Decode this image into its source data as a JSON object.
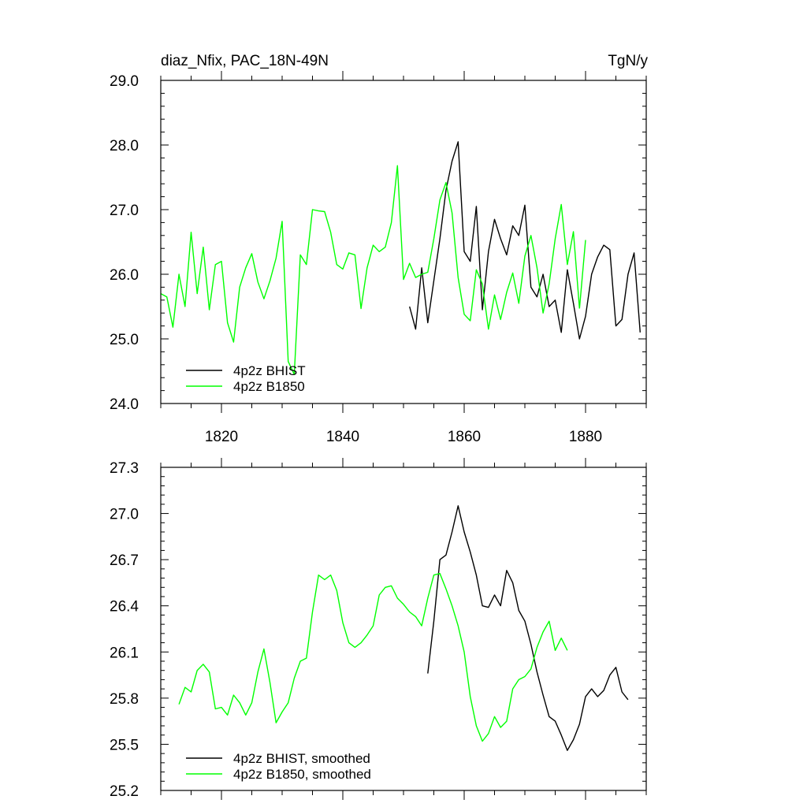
{
  "colors": {
    "bhist": "#000000",
    "b1850": "#00ff00"
  },
  "chart_data": [
    {
      "type": "line",
      "title_left": "diaz_Nfix, PAC_18N-49N",
      "title_right": "TgN/y",
      "xlabel": "",
      "ylabel": "",
      "xlim": [
        1810,
        1890
      ],
      "ylim": [
        24.0,
        29.0
      ],
      "xticks": [
        1820,
        1840,
        1860,
        1880
      ],
      "xtick_labels": [
        "1820",
        "1840",
        "1860",
        "1880"
      ],
      "yticks": [
        24.0,
        25.0,
        26.0,
        27.0,
        28.0,
        29.0
      ],
      "ytick_labels": [
        "24.0",
        "25.0",
        "26.0",
        "27.0",
        "28.0",
        "29.0"
      ],
      "legend_position": "bottom-left",
      "series": [
        {
          "name": "4p2z BHIST",
          "color_key": "bhist",
          "x": [
            1851,
            1852,
            1853,
            1854,
            1855,
            1856,
            1857,
            1858,
            1859,
            1860,
            1861,
            1862,
            1863,
            1864,
            1865,
            1866,
            1867,
            1868,
            1869,
            1870,
            1871,
            1872,
            1873,
            1874,
            1875,
            1876,
            1877,
            1878,
            1879,
            1880,
            1881,
            1882,
            1883,
            1884,
            1885,
            1886,
            1887,
            1888,
            1889
          ],
          "values": [
            25.5,
            25.15,
            26.1,
            25.25,
            25.9,
            26.55,
            27.3,
            27.75,
            28.05,
            26.35,
            26.2,
            27.05,
            25.45,
            26.35,
            26.85,
            26.55,
            26.3,
            26.75,
            26.6,
            27.07,
            25.8,
            25.65,
            26.0,
            25.5,
            25.6,
            25.1,
            26.07,
            25.55,
            25.0,
            25.35,
            26.0,
            26.27,
            26.45,
            26.38,
            25.2,
            25.3,
            26.0,
            26.33,
            25.1
          ]
        },
        {
          "name": "4p2z B1850",
          "color_key": "b1850",
          "x": [
            1810,
            1811,
            1812,
            1813,
            1814,
            1815,
            1816,
            1817,
            1818,
            1819,
            1820,
            1821,
            1822,
            1823,
            1824,
            1825,
            1826,
            1827,
            1828,
            1829,
            1830,
            1831,
            1832,
            1833,
            1834,
            1835,
            1836,
            1837,
            1838,
            1839,
            1840,
            1841,
            1842,
            1843,
            1844,
            1845,
            1846,
            1847,
            1848,
            1849,
            1850,
            1851,
            1852,
            1853,
            1854,
            1855,
            1856,
            1857,
            1858,
            1859,
            1860,
            1861,
            1862,
            1863,
            1864,
            1865,
            1866,
            1867,
            1868,
            1869,
            1870,
            1871,
            1872,
            1873,
            1874,
            1875,
            1876,
            1877,
            1878,
            1879
          ],
          "values": [
            25.7,
            25.65,
            25.18,
            26.0,
            25.5,
            26.65,
            25.7,
            26.42,
            25.45,
            26.15,
            26.2,
            25.25,
            24.95,
            25.8,
            26.1,
            26.32,
            25.88,
            25.62,
            25.9,
            26.25,
            26.82,
            24.65,
            24.45,
            26.3,
            26.15,
            27.0,
            26.98,
            26.97,
            26.65,
            26.15,
            26.08,
            26.33,
            26.3,
            25.47,
            26.1,
            26.45,
            26.35,
            26.42,
            26.8,
            27.68,
            25.92,
            26.17,
            25.95,
            26.0,
            26.03,
            26.55,
            27.15,
            27.42,
            26.95,
            25.95,
            25.38,
            25.28,
            26.07,
            25.85,
            25.15,
            25.68,
            25.3,
            25.72,
            26.02,
            25.55,
            26.28,
            26.6,
            26.1,
            25.4,
            25.85,
            26.55,
            27.08,
            26.15,
            26.66,
            25.47
          ]
        }
      ],
      "extra_segment": {
        "x": [
          1879,
          1880
        ],
        "values": [
          25.47,
          26.53
        ]
      }
    },
    {
      "type": "line",
      "title_left": "",
      "title_right": "",
      "xlabel": "",
      "ylabel": "",
      "xlim": [
        1810,
        1890
      ],
      "ylim": [
        25.2,
        27.3
      ],
      "xticks": [
        1820,
        1840,
        1860,
        1880
      ],
      "yticks": [
        25.2,
        25.5,
        25.8,
        26.1,
        26.4,
        26.7,
        27.0,
        27.3
      ],
      "ytick_labels": [
        "25.2",
        "25.5",
        "25.8",
        "26.1",
        "26.4",
        "26.7",
        "27.0",
        "27.3"
      ],
      "legend_position": "bottom-left",
      "series": [
        {
          "name": "4p2z BHIST, smoothed",
          "color_key": "bhist",
          "x": [
            1854,
            1855,
            1856,
            1857,
            1858,
            1859,
            1860,
            1861,
            1862,
            1863,
            1864,
            1865,
            1866,
            1867,
            1868,
            1869,
            1870,
            1871,
            1872,
            1873,
            1874,
            1875,
            1876,
            1877,
            1878,
            1879,
            1880,
            1881,
            1882,
            1883,
            1884,
            1885,
            1886,
            1887
          ],
          "values": [
            25.96,
            26.3,
            26.7,
            26.73,
            26.88,
            27.05,
            26.88,
            26.75,
            26.6,
            26.4,
            26.39,
            26.47,
            26.4,
            26.63,
            26.55,
            26.37,
            26.3,
            26.15,
            25.97,
            25.82,
            25.68,
            25.65,
            25.56,
            25.46,
            25.53,
            25.63,
            25.81,
            25.86,
            25.81,
            25.85,
            25.95,
            26.0,
            25.84,
            25.79
          ]
        },
        {
          "name": "4p2z B1850, smoothed",
          "color_key": "b1850",
          "x": [
            1813,
            1814,
            1815,
            1816,
            1817,
            1818,
            1819,
            1820,
            1821,
            1822,
            1823,
            1824,
            1825,
            1826,
            1827,
            1828,
            1829,
            1830,
            1831,
            1832,
            1833,
            1834,
            1835,
            1836,
            1837,
            1838,
            1839,
            1840,
            1841,
            1842,
            1843,
            1844,
            1845,
            1846,
            1847,
            1848,
            1849,
            1850,
            1851,
            1852,
            1853,
            1854,
            1855,
            1856,
            1857,
            1858,
            1859,
            1860,
            1861,
            1862,
            1863,
            1864,
            1865,
            1866,
            1867,
            1868,
            1869,
            1870,
            1871,
            1872,
            1873,
            1874,
            1875,
            1876,
            1877
          ],
          "values": [
            25.76,
            25.87,
            25.84,
            25.98,
            26.02,
            25.97,
            25.73,
            25.74,
            25.69,
            25.82,
            25.77,
            25.69,
            25.77,
            25.97,
            26.12,
            25.9,
            25.64,
            25.71,
            25.77,
            25.93,
            26.04,
            26.06,
            26.36,
            26.6,
            26.57,
            26.6,
            26.5,
            26.29,
            26.16,
            26.13,
            26.16,
            26.21,
            26.27,
            26.47,
            26.52,
            26.53,
            26.45,
            26.41,
            26.36,
            26.33,
            26.27,
            26.45,
            26.6,
            26.61,
            26.51,
            26.4,
            26.27,
            26.1,
            25.81,
            25.62,
            25.52,
            25.57,
            25.68,
            25.61,
            25.65,
            25.86,
            25.92,
            25.94,
            25.99,
            26.13,
            26.23,
            26.3,
            26.11,
            26.19,
            26.11
          ]
        }
      ]
    }
  ]
}
